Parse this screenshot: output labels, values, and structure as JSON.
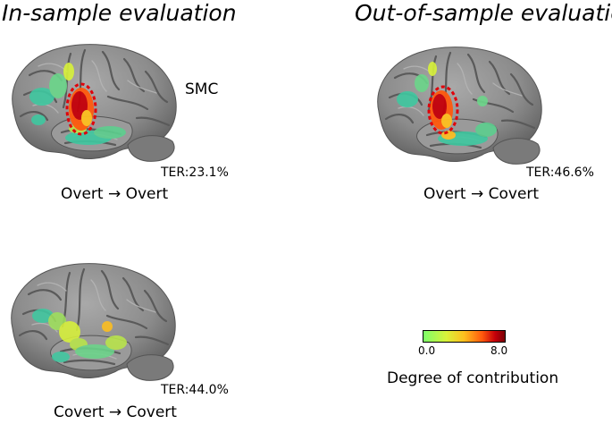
{
  "headings": {
    "in_sample": "In-sample evaluation",
    "out_of_sample": "Out-of-sample evaluation"
  },
  "panels": [
    {
      "id": "overt-overt",
      "ter": "TER:23.1%",
      "caption": "Overt → Overt",
      "smc_region": true
    },
    {
      "id": "overt-covert",
      "ter": "TER:46.6%",
      "caption": "Overt → Covert",
      "smc_region": true
    },
    {
      "id": "covert-covert",
      "ter": "TER:44.0%",
      "caption": "Covert → Covert",
      "smc_region": false
    }
  ],
  "smc_label": "SMC",
  "colorbar": {
    "min_label": "0.0",
    "max_label": "8.0",
    "title": "Degree of contribution",
    "min_value": 0.0,
    "max_value": 8.0,
    "colors": [
      "#7dff6a",
      "#d8f23a",
      "#ffbf1e",
      "#ff5a0d",
      "#c5000a",
      "#7b0006"
    ]
  }
}
